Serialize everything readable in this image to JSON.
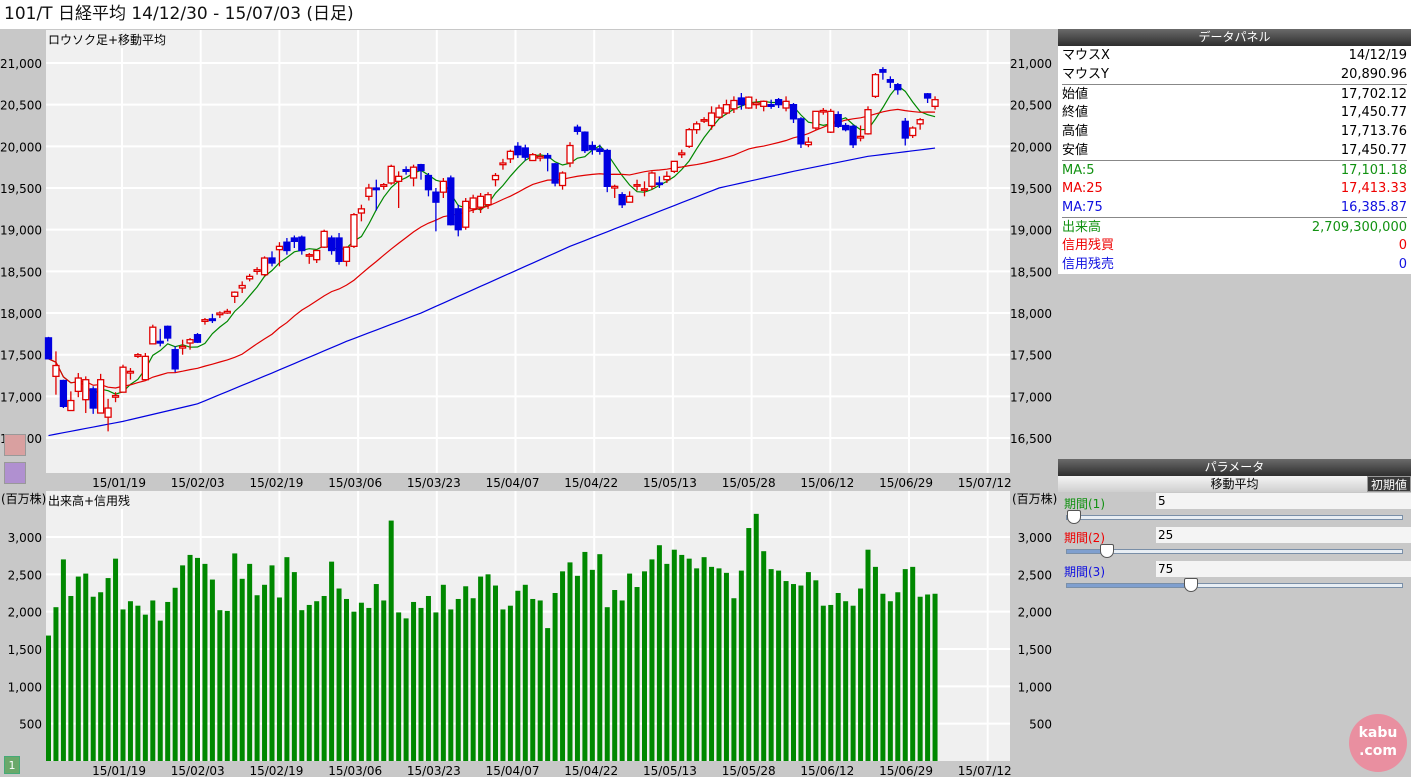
{
  "title": "101/T 日経平均  14/12/30 - 15/07/03 (日足)",
  "price_panel": {
    "label": "ロウソク足+移動平均",
    "yticks": [
      "21,000",
      "20,500",
      "20,000",
      "19,500",
      "19,000",
      "18,500",
      "18,000",
      "17,500",
      "17,000",
      "16,500"
    ]
  },
  "volume_panel": {
    "label": "出来高+信用残",
    "unit": "(百万株)",
    "yticks": [
      "3,000",
      "2,500",
      "2,000",
      "1,500",
      "1,000",
      "500"
    ]
  },
  "xticks": [
    "15/01/19",
    "15/02/03",
    "15/02/19",
    "15/03/06",
    "15/03/23",
    "15/04/07",
    "15/04/22",
    "15/05/13",
    "15/05/28",
    "15/06/12",
    "15/06/29",
    "15/07/12"
  ],
  "colors": {
    "up": "#e00000",
    "down": "#0000e0",
    "ma5": "#008800",
    "ma25": "#e00000",
    "ma75": "#0000e0",
    "volume": "#008800"
  },
  "chart_data": {
    "type": "candlestick",
    "ylim": [
      16500,
      21000
    ],
    "ohlc": [
      [
        17702,
        17714,
        17451,
        17451
      ],
      [
        17240,
        17540,
        17020,
        17370
      ],
      [
        17190,
        17200,
        16860,
        16880
      ],
      [
        16830,
        17060,
        16830,
        16950
      ],
      [
        17060,
        17280,
        16990,
        17220
      ],
      [
        16960,
        17240,
        16800,
        17200
      ],
      [
        17090,
        17120,
        16790,
        16860
      ],
      [
        16800,
        17270,
        16800,
        17200
      ],
      [
        16750,
        16970,
        16580,
        16860
      ],
      [
        16990,
        17050,
        16930,
        17010
      ],
      [
        17050,
        17380,
        17050,
        17350
      ],
      [
        17280,
        17340,
        17200,
        17300
      ],
      [
        17480,
        17520,
        17460,
        17500
      ],
      [
        17200,
        17520,
        17200,
        17480
      ],
      [
        17630,
        17860,
        17630,
        17830
      ],
      [
        17660,
        17810,
        17600,
        17640
      ],
      [
        17840,
        17850,
        17660,
        17700
      ],
      [
        17560,
        17600,
        17290,
        17330
      ],
      [
        17580,
        17680,
        17500,
        17600
      ],
      [
        17640,
        17700,
        17560,
        17680
      ],
      [
        17740,
        17760,
        17640,
        17650
      ],
      [
        17900,
        17940,
        17860,
        17920
      ],
      [
        17930,
        17990,
        17880,
        17910
      ],
      [
        17980,
        18020,
        17940,
        18000
      ],
      [
        18000,
        18050,
        17990,
        18020
      ],
      [
        18200,
        18260,
        18120,
        18250
      ],
      [
        18300,
        18380,
        18240,
        18330
      ],
      [
        18410,
        18470,
        18380,
        18440
      ],
      [
        18500,
        18550,
        18460,
        18520
      ],
      [
        18460,
        18680,
        18440,
        18660
      ],
      [
        18660,
        18740,
        18560,
        18600
      ],
      [
        18760,
        18850,
        18560,
        18800
      ],
      [
        18850,
        18900,
        18700,
        18750
      ],
      [
        18900,
        18930,
        18780,
        18860
      ],
      [
        18910,
        18930,
        18700,
        18750
      ],
      [
        18700,
        18720,
        18590,
        18700
      ],
      [
        18640,
        18750,
        18600,
        18750
      ],
      [
        18790,
        19000,
        18780,
        18980
      ],
      [
        18900,
        18930,
        18700,
        18750
      ],
      [
        18900,
        18960,
        18580,
        18620
      ],
      [
        18620,
        18800,
        18560,
        18790
      ],
      [
        18800,
        19200,
        18780,
        19180
      ],
      [
        19200,
        19300,
        19100,
        19250
      ],
      [
        19400,
        19550,
        19350,
        19500
      ],
      [
        19500,
        19600,
        19230,
        19480
      ],
      [
        19520,
        19560,
        19480,
        19540
      ],
      [
        19560,
        19780,
        19540,
        19760
      ],
      [
        19580,
        19700,
        19260,
        19640
      ],
      [
        19720,
        19760,
        19660,
        19700
      ],
      [
        19620,
        19780,
        19520,
        19750
      ],
      [
        19780,
        19790,
        19600,
        19710
      ],
      [
        19650,
        19680,
        19400,
        19480
      ],
      [
        19450,
        19500,
        18980,
        19330
      ],
      [
        19450,
        19620,
        19380,
        19580
      ],
      [
        19620,
        19650,
        19050,
        19060
      ],
      [
        19250,
        19300,
        18920,
        19000
      ],
      [
        19030,
        19380,
        19000,
        19340
      ],
      [
        19250,
        19420,
        19200,
        19380
      ],
      [
        19270,
        19440,
        19200,
        19400
      ],
      [
        19300,
        19450,
        19250,
        19420
      ],
      [
        19600,
        19680,
        19520,
        19650
      ],
      [
        19780,
        19850,
        19720,
        19800
      ],
      [
        19850,
        19960,
        19800,
        19940
      ],
      [
        20000,
        20050,
        19860,
        19900
      ],
      [
        19980,
        20020,
        19830,
        19870
      ],
      [
        19830,
        19920,
        19830,
        19900
      ],
      [
        19860,
        19920,
        19820,
        19880
      ],
      [
        19890,
        19920,
        19700,
        19860
      ],
      [
        19790,
        19800,
        19520,
        19560
      ],
      [
        19530,
        19700,
        19480,
        19680
      ],
      [
        19800,
        20050,
        19750,
        20010
      ],
      [
        20230,
        20260,
        20140,
        20180
      ],
      [
        20170,
        20180,
        19920,
        19950
      ],
      [
        20010,
        20060,
        19900,
        19960
      ],
      [
        19970,
        20020,
        19900,
        19940
      ],
      [
        19950,
        19970,
        19450,
        19520
      ],
      [
        19500,
        19540,
        19380,
        19520
      ],
      [
        19420,
        19450,
        19260,
        19300
      ],
      [
        19330,
        19460,
        19330,
        19400
      ],
      [
        19530,
        19600,
        19470,
        19540
      ],
      [
        19480,
        19580,
        19400,
        19490
      ],
      [
        19520,
        19700,
        19480,
        19680
      ],
      [
        19560,
        19640,
        19500,
        19550
      ],
      [
        19600,
        19700,
        19560,
        19640
      ],
      [
        19700,
        19800,
        19680,
        19820
      ],
      [
        19900,
        19960,
        19860,
        19920
      ],
      [
        20000,
        20220,
        19980,
        20200
      ],
      [
        20200,
        20300,
        20150,
        20270
      ],
      [
        20310,
        20350,
        20280,
        20320
      ],
      [
        20250,
        20480,
        20200,
        20400
      ],
      [
        20350,
        20500,
        20330,
        20460
      ],
      [
        20400,
        20560,
        20380,
        20500
      ],
      [
        20450,
        20600,
        20400,
        20550
      ],
      [
        20580,
        20640,
        20440,
        20500
      ],
      [
        20460,
        20600,
        20450,
        20590
      ],
      [
        20500,
        20570,
        20450,
        20520
      ],
      [
        20480,
        20550,
        20420,
        20540
      ],
      [
        20500,
        20560,
        20450,
        20480
      ],
      [
        20560,
        20580,
        20460,
        20500
      ],
      [
        20460,
        20600,
        20420,
        20540
      ],
      [
        20500,
        20520,
        20280,
        20330
      ],
      [
        20330,
        20350,
        19980,
        20030
      ],
      [
        20020,
        20110,
        19990,
        20050
      ],
      [
        20220,
        20420,
        20200,
        20420
      ],
      [
        20420,
        20460,
        20380,
        20430
      ],
      [
        20170,
        20450,
        20160,
        20420
      ],
      [
        20380,
        20420,
        20220,
        20240
      ],
      [
        20250,
        20280,
        20180,
        20200
      ],
      [
        20240,
        20260,
        19980,
        20020
      ],
      [
        20100,
        20250,
        20060,
        20120
      ],
      [
        20150,
        20480,
        20140,
        20440
      ],
      [
        20600,
        20880,
        20580,
        20860
      ],
      [
        20920,
        20950,
        20800,
        20890
      ],
      [
        20800,
        20840,
        20700,
        20770
      ],
      [
        20740,
        20760,
        20620,
        20680
      ],
      [
        20300,
        20340,
        20010,
        20100
      ],
      [
        20130,
        20240,
        20100,
        20220
      ],
      [
        20270,
        20340,
        20200,
        20320
      ],
      [
        20630,
        20640,
        20520,
        20580
      ],
      [
        20480,
        20600,
        20440,
        20560
      ]
    ],
    "ma_periods": [
      5,
      25,
      75
    ],
    "ma75_every_10_bars": [
      16530,
      16700,
      16910,
      17280,
      17660,
      18000,
      18400,
      18800,
      19150,
      19500,
      19700,
      19880,
      19990
    ],
    "volume": [
      1680,
      2060,
      2700,
      2210,
      2470,
      2510,
      2200,
      2260,
      2450,
      2710,
      2030,
      2140,
      2080,
      1960,
      2150,
      1880,
      2130,
      2320,
      2620,
      2760,
      2720,
      2640,
      2430,
      2020,
      2010,
      2780,
      2440,
      2640,
      2220,
      2360,
      2620,
      2190,
      2730,
      2530,
      2020,
      2090,
      2140,
      2210,
      2670,
      2310,
      2170,
      2000,
      2120,
      2050,
      2370,
      2150,
      3220,
      1990,
      1910,
      2130,
      2050,
      2210,
      1990,
      2360,
      2030,
      2170,
      2340,
      2180,
      2470,
      2500,
      2350,
      2030,
      2080,
      2280,
      2360,
      2170,
      2150,
      1780,
      2250,
      2540,
      2660,
      2480,
      2800,
      2560,
      2770,
      2060,
      2290,
      2150,
      2510,
      2330,
      2540,
      2700,
      2890,
      2640,
      2830,
      2760,
      2710,
      2580,
      2730,
      2600,
      2580,
      2520,
      2180,
      2550,
      3120,
      3310,
      2810,
      2570,
      2550,
      2410,
      2370,
      2350,
      2530,
      2420,
      2080,
      2090,
      2250,
      2140,
      2080,
      2310,
      2830,
      2600,
      2240,
      2140,
      2260,
      2570,
      2600,
      2200,
      2230,
      2240
    ],
    "volume_ylim": [
      0,
      3000
    ]
  },
  "data_panel": {
    "title": "データパネル",
    "rows": [
      {
        "label": "マウスX",
        "value": "14/12/19"
      },
      {
        "label": "マウスY",
        "value": "20,890.96"
      },
      {
        "label": "始値",
        "value": "17,702.12"
      },
      {
        "label": "終値",
        "value": "17,450.77"
      },
      {
        "label": "高値",
        "value": "17,713.76"
      },
      {
        "label": "安値",
        "value": "17,450.77"
      },
      {
        "label": "MA:5",
        "value": "17,101.18"
      },
      {
        "label": "MA:25",
        "value": "17,413.33"
      },
      {
        "label": "MA:75",
        "value": "16,385.87"
      },
      {
        "label": "出来高",
        "value": "2,709,300,000"
      },
      {
        "label": "信用残買",
        "value": "0"
      },
      {
        "label": "信用残売",
        "value": "0"
      }
    ]
  },
  "params": {
    "title": "パラメータ",
    "section": "移動平均",
    "reset": "初期値",
    "items": [
      {
        "label": "期間(1)",
        "value": "5",
        "pct": 2
      },
      {
        "label": "期間(2)",
        "value": "25",
        "pct": 12
      },
      {
        "label": "期間(3)",
        "value": "75",
        "pct": 37
      }
    ]
  },
  "page_button": "1",
  "logo": "kabu.com"
}
